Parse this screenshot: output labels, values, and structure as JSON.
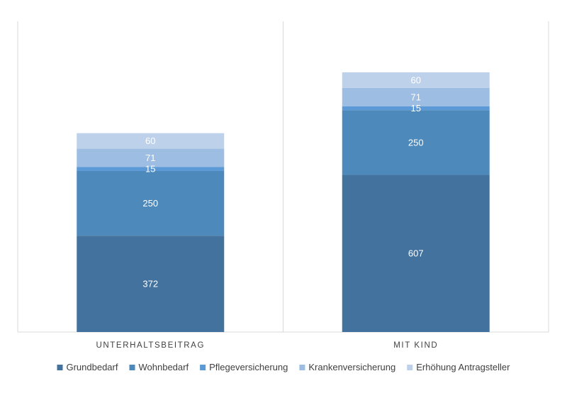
{
  "chart_data": {
    "type": "bar",
    "stacked": true,
    "categories": [
      "UNTERHALTSBEITRAG",
      "MIT KIND"
    ],
    "series": [
      {
        "name": "Grundbedarf",
        "values": [
          372,
          607
        ],
        "color": "#44729e"
      },
      {
        "name": "Wohnbedarf",
        "values": [
          250,
          250
        ],
        "color": "#4e89bb"
      },
      {
        "name": "Pflegeversicherung",
        "values": [
          15,
          15
        ],
        "color": "#5b9ad6"
      },
      {
        "name": "Krankenversicherung",
        "values": [
          71,
          71
        ],
        "color": "#9dbde2"
      },
      {
        "name": "Erhöhung Antragsteller",
        "values": [
          60,
          60
        ],
        "color": "#bdd1ea"
      }
    ],
    "data_labels": true,
    "ylim": [
      0,
      1200
    ],
    "grid": false,
    "legend": "bottom",
    "axis_color": "#d9d9d9",
    "label_color": "#ffffff",
    "text_color": "#404040"
  }
}
